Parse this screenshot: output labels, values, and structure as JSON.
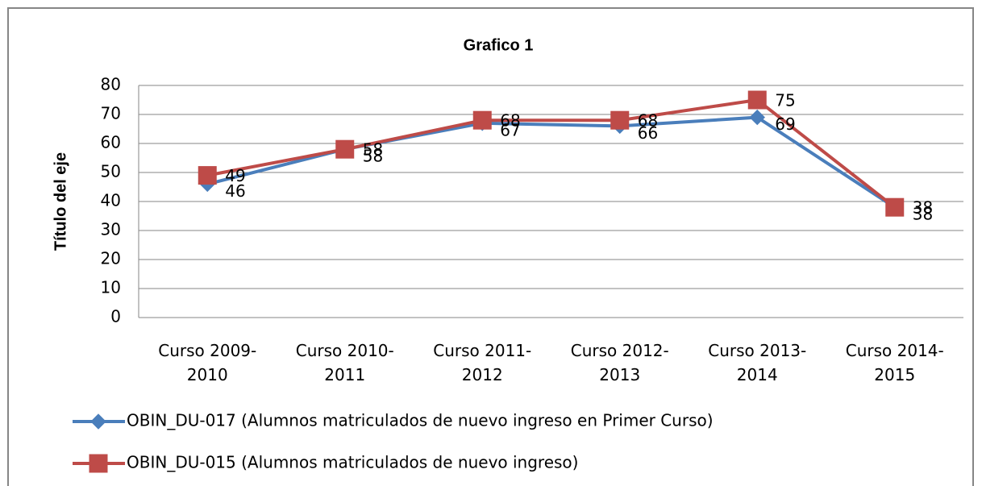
{
  "chart_data": {
    "type": "line",
    "title": "Grafico 1",
    "y_label": "Título del eje",
    "categories": [
      "Curso 2009-2010",
      "Curso 2010-2011",
      "Curso 2011-2012",
      "Curso 2012-2013",
      "Curso 2013-2014",
      "Curso 2014-2015"
    ],
    "series": [
      {
        "name": "OBIN_DU-017 (Alumnos matriculados de nuevo ingreso en Primer Curso)",
        "color": "#4a7ebb",
        "marker": "diamond",
        "values": [
          46,
          58,
          67,
          66,
          69,
          38
        ]
      },
      {
        "name": "OBIN_DU-015 (Alumnos matriculados de nuevo ingreso)",
        "color": "#be4b48",
        "marker": "square",
        "values": [
          49,
          58,
          68,
          68,
          75,
          38
        ]
      }
    ],
    "ylim": [
      0,
      80
    ],
    "yticks": [
      0,
      10,
      20,
      30,
      40,
      50,
      60,
      70,
      80
    ],
    "grid": true,
    "legend": "bottom"
  }
}
